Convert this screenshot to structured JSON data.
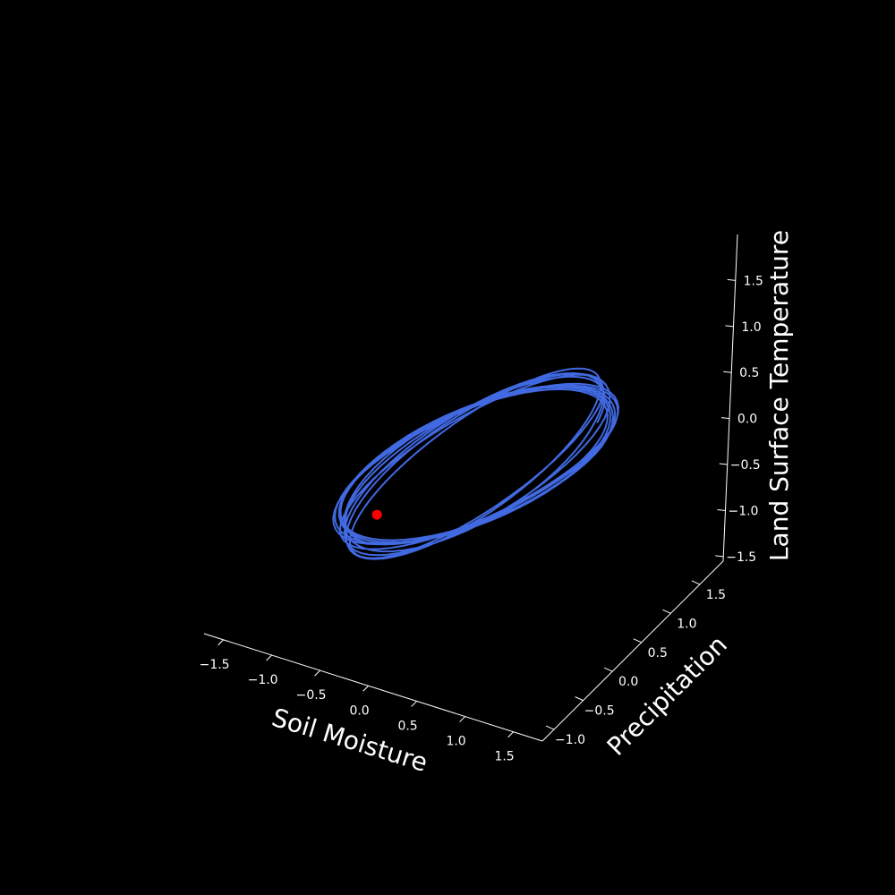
{
  "chart_data": {
    "type": "line",
    "subtype": "3d-trajectory",
    "background": "#000000",
    "line_color": "#4169e1",
    "marker_color": "#ff0000",
    "axes": {
      "x": {
        "label": "Soil Moisture",
        "range": [
          -1.7,
          1.8
        ],
        "ticks": [
          -1.5,
          -1.0,
          -0.5,
          0.0,
          0.5,
          1.0,
          1.5
        ],
        "tick_labels": [
          "−1.5",
          "−1.0",
          "−0.5",
          "0.0",
          "0.5",
          "1.0",
          "1.5"
        ]
      },
      "y": {
        "label": "Precipitation",
        "range": [
          -1.2,
          1.9
        ],
        "ticks": [
          -1.0,
          -0.5,
          0.0,
          0.5,
          1.0,
          1.5
        ],
        "tick_labels": [
          "−1.0",
          "−0.5",
          "0.0",
          "0.5",
          "1.0",
          "1.5"
        ]
      },
      "z": {
        "label": "Land Surface Temperature",
        "range": [
          -1.55,
          2.0
        ],
        "ticks": [
          -1.5,
          -1.0,
          -0.5,
          0.0,
          0.5,
          1.0,
          1.5
        ],
        "tick_labels": [
          "−1.5",
          "−1.0",
          "−0.5",
          "0.0",
          "0.5",
          "1.0",
          "1.5"
        ]
      }
    },
    "grid": false,
    "legend": null,
    "trajectory": {
      "loops": 11,
      "x_amplitude": 1.55,
      "y_amplitude": 0.85,
      "z_amplitude": 1.25,
      "y_offset": 0.55
    },
    "marker": {
      "x": -0.9,
      "y": 0.4,
      "z": -1.0
    }
  }
}
